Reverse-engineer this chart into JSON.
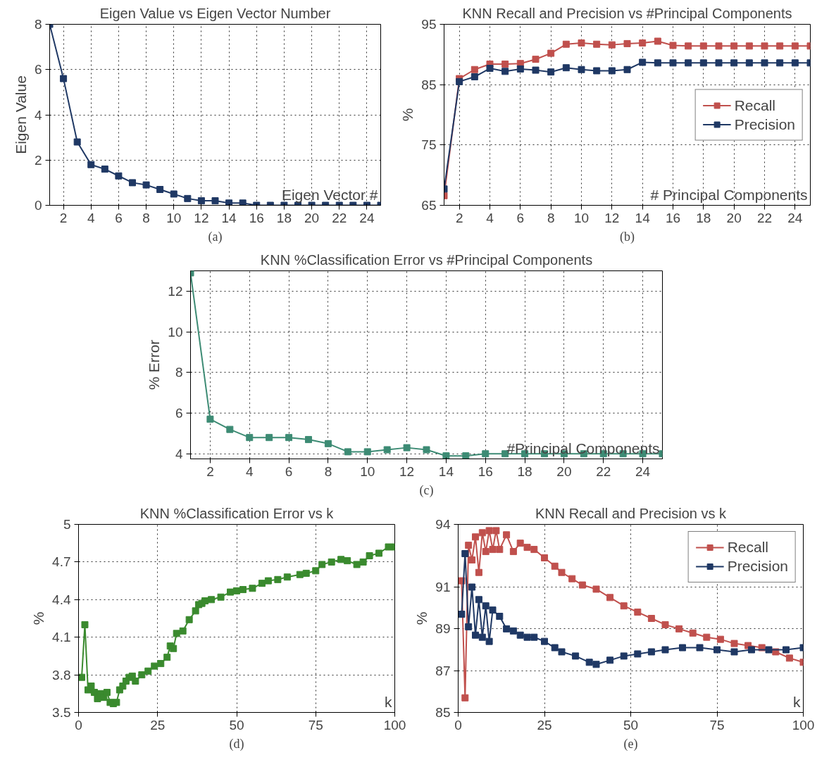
{
  "chart_data": [
    {
      "type": "line",
      "title": "Eigen Value vs Eigen Vector Number",
      "xlabel": "Eigen Vector #",
      "ylabel": "Eigen Value",
      "annotations": [
        "(a)"
      ],
      "marker": "square",
      "grid": true,
      "xlim": [
        1,
        25
      ],
      "ylim": [
        0,
        8
      ],
      "xticks": [
        2,
        4,
        6,
        8,
        10,
        12,
        14,
        16,
        18,
        20,
        22,
        24
      ],
      "yticks": [
        0,
        2,
        4,
        6,
        8
      ],
      "x": [
        1,
        2,
        3,
        4,
        5,
        6,
        7,
        8,
        9,
        10,
        11,
        12,
        13,
        14,
        15,
        16,
        17,
        18,
        19,
        20,
        21,
        22,
        23,
        24,
        25
      ],
      "series": [
        {
          "color": "#1f3864",
          "values": [
            8.0,
            5.6,
            2.8,
            1.8,
            1.6,
            1.3,
            1.0,
            0.9,
            0.7,
            0.5,
            0.3,
            0.2,
            0.2,
            0.1,
            0.1,
            0.0,
            0.0,
            0.0,
            0.0,
            0.0,
            0.0,
            0.0,
            0.0,
            0.0,
            0.0
          ]
        }
      ]
    },
    {
      "type": "line",
      "title": "KNN Recall and Precision vs #Principal Components",
      "xlabel": "# Principal Components",
      "ylabel": "%",
      "annotations": [
        "(b)"
      ],
      "marker": "square",
      "grid": true,
      "legend": "right",
      "xlim": [
        1,
        25
      ],
      "ylim": [
        65,
        95
      ],
      "xticks": [
        2,
        4,
        6,
        8,
        10,
        12,
        14,
        16,
        18,
        20,
        22,
        24
      ],
      "yticks": [
        65,
        75,
        85,
        95
      ],
      "x": [
        1,
        2,
        3,
        4,
        5,
        6,
        7,
        8,
        9,
        10,
        11,
        12,
        13,
        14,
        15,
        16,
        17,
        18,
        19,
        20,
        21,
        22,
        23,
        24,
        25
      ],
      "series": [
        {
          "name": "Recall",
          "color": "#c0504d",
          "values": [
            66.6,
            86.0,
            87.5,
            88.4,
            88.4,
            88.5,
            89.2,
            90.2,
            91.7,
            91.9,
            91.7,
            91.6,
            91.8,
            91.9,
            92.2,
            91.5,
            91.4,
            91.4,
            91.4,
            91.4,
            91.4,
            91.4,
            91.4,
            91.4,
            91.4
          ]
        },
        {
          "name": "Precision",
          "color": "#1f3864",
          "values": [
            67.7,
            85.5,
            86.3,
            87.7,
            87.2,
            87.6,
            87.4,
            87.1,
            87.8,
            87.5,
            87.3,
            87.3,
            87.5,
            88.7,
            88.6,
            88.6,
            88.6,
            88.6,
            88.6,
            88.6,
            88.6,
            88.6,
            88.6,
            88.6,
            88.6
          ]
        }
      ]
    },
    {
      "type": "line",
      "title": "KNN %Classification Error vs #Principal Components",
      "xlabel": "#Principal Components",
      "ylabel": "% Error",
      "annotations": [
        "(c)"
      ],
      "marker": "square",
      "grid": true,
      "xlim": [
        1,
        25
      ],
      "ylim": [
        3.75,
        13
      ],
      "xticks": [
        2,
        4,
        6,
        8,
        10,
        12,
        14,
        16,
        18,
        20,
        22,
        24
      ],
      "yticks": [
        4,
        6,
        8,
        10,
        12
      ],
      "x": [
        1,
        2,
        3,
        4,
        5,
        6,
        7,
        8,
        9,
        10,
        11,
        12,
        13,
        14,
        15,
        16,
        17,
        18,
        19,
        20,
        21,
        22,
        23,
        24,
        25
      ],
      "series": [
        {
          "color": "#3d8b74",
          "values": [
            12.9,
            5.7,
            5.2,
            4.8,
            4.8,
            4.8,
            4.7,
            4.5,
            4.1,
            4.1,
            4.2,
            4.3,
            4.2,
            3.9,
            3.9,
            4.0,
            4.0,
            4.0,
            4.0,
            4.0,
            4.0,
            4.0,
            4.0,
            4.0,
            4.0
          ]
        }
      ]
    },
    {
      "type": "line",
      "title": "KNN %Classification Error vs k",
      "xlabel": "k",
      "ylabel": "%",
      "annotations": [
        "(d)"
      ],
      "marker": "square",
      "grid": true,
      "xlim": [
        0,
        100
      ],
      "ylim": [
        3.5,
        5
      ],
      "xticks": [
        0,
        25,
        50,
        75,
        100
      ],
      "yticks": [
        3.5,
        3.8,
        4.1,
        4.4,
        4.7,
        5
      ],
      "x": [
        1,
        2,
        3,
        4,
        5,
        6,
        7,
        8,
        9,
        10,
        11,
        12,
        13,
        14,
        15,
        16,
        17,
        18,
        20,
        22,
        24,
        26,
        28,
        29,
        30,
        31,
        33,
        35,
        37,
        38,
        39,
        40,
        42,
        45,
        48,
        50,
        52,
        55,
        58,
        60,
        63,
        66,
        70,
        72,
        75,
        77,
        80,
        83,
        85,
        88,
        90,
        92,
        95,
        98,
        100
      ],
      "series": [
        {
          "color": "#3a8a2e",
          "values": [
            3.78,
            4.2,
            3.68,
            3.71,
            3.66,
            3.61,
            3.65,
            3.62,
            3.66,
            3.58,
            3.57,
            3.58,
            3.68,
            3.71,
            3.75,
            3.78,
            3.79,
            3.75,
            3.8,
            3.83,
            3.87,
            3.89,
            3.94,
            4.03,
            4.01,
            4.13,
            4.15,
            4.24,
            4.31,
            4.36,
            4.37,
            4.39,
            4.4,
            4.42,
            4.46,
            4.47,
            4.48,
            4.49,
            4.53,
            4.55,
            4.56,
            4.58,
            4.6,
            4.61,
            4.63,
            4.68,
            4.7,
            4.72,
            4.71,
            4.68,
            4.7,
            4.75,
            4.77,
            4.82,
            4.82
          ]
        }
      ]
    },
    {
      "type": "line",
      "title": "KNN Recall and Precision vs k",
      "xlabel": "k",
      "ylabel": "%",
      "annotations": [
        "(e)"
      ],
      "marker": "square",
      "grid": true,
      "legend": "top right",
      "xlim": [
        0,
        100
      ],
      "ylim": [
        85,
        94
      ],
      "xticks": [
        0,
        25,
        50,
        75,
        100
      ],
      "yticks": [
        85,
        87,
        89,
        91,
        94
      ],
      "series": [
        {
          "name": "Recall",
          "color": "#c0504d",
          "x": [
            1,
            2,
            3,
            4,
            5,
            6,
            7,
            8,
            9,
            10,
            11,
            12,
            14,
            16,
            18,
            20,
            22,
            25,
            28,
            30,
            33,
            36,
            40,
            44,
            48,
            52,
            56,
            60,
            64,
            68,
            72,
            76,
            80,
            84,
            88,
            92,
            96,
            100
          ],
          "values": [
            91.3,
            85.7,
            93.0,
            92.3,
            93.4,
            91.7,
            93.6,
            92.7,
            93.7,
            92.8,
            93.7,
            92.8,
            93.5,
            92.7,
            93.1,
            92.9,
            92.8,
            92.4,
            92.0,
            91.7,
            91.4,
            91.1,
            90.9,
            90.5,
            90.1,
            89.8,
            89.5,
            89.2,
            89.0,
            88.8,
            88.6,
            88.5,
            88.3,
            88.2,
            88.1,
            87.9,
            87.6,
            87.4
          ]
        },
        {
          "name": "Precision",
          "color": "#1f3864",
          "x": [
            1,
            2,
            3,
            4,
            5,
            6,
            7,
            8,
            9,
            10,
            12,
            14,
            16,
            18,
            20,
            22,
            25,
            28,
            30,
            34,
            38,
            40,
            44,
            48,
            52,
            56,
            60,
            65,
            70,
            75,
            80,
            85,
            90,
            95,
            100
          ],
          "values": [
            89.7,
            92.6,
            89.1,
            91.0,
            88.7,
            90.4,
            88.6,
            90.1,
            88.4,
            89.9,
            89.6,
            89.0,
            88.9,
            88.7,
            88.6,
            88.6,
            88.4,
            88.1,
            87.9,
            87.7,
            87.4,
            87.3,
            87.5,
            87.7,
            87.8,
            87.9,
            88.0,
            88.1,
            88.1,
            88.0,
            87.9,
            88.0,
            88.0,
            88.0,
            88.1
          ]
        }
      ]
    }
  ]
}
